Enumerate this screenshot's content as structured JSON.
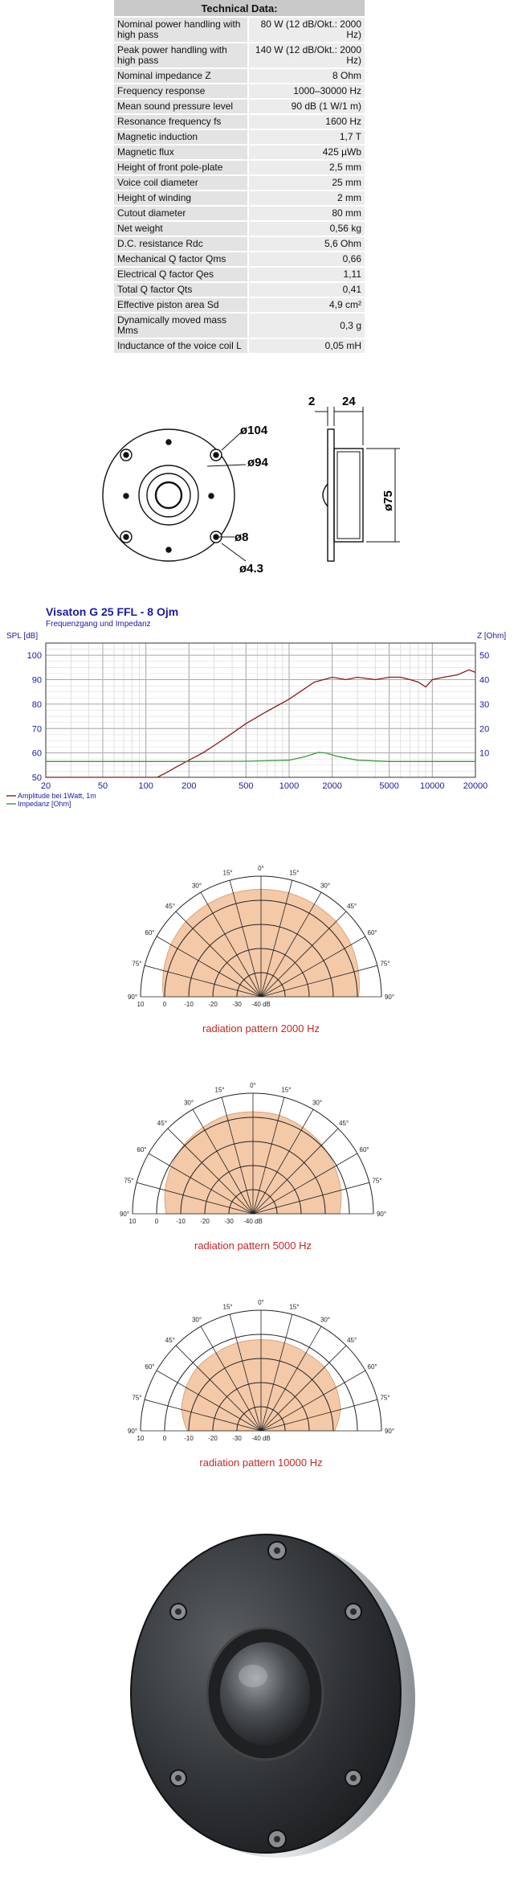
{
  "spec_table": {
    "title": "Technical Data:",
    "rows": [
      [
        "Nominal power handling with high pass",
        "80 W (12 dB/Okt.: 2000 Hz)"
      ],
      [
        "Peak power handling with high pass",
        "140 W (12 dB/Okt.: 2000 Hz)"
      ],
      [
        "Nominal impedance Z",
        "8 Ohm"
      ],
      [
        "Frequency response",
        "1000–30000 Hz"
      ],
      [
        "Mean sound pressure level",
        "90 dB (1 W/1 m)"
      ],
      [
        "Resonance frequency fs",
        "1600 Hz"
      ],
      [
        "Magnetic induction",
        "1,7 T"
      ],
      [
        "Magnetic flux",
        "425 µWb"
      ],
      [
        "Height of front pole-plate",
        "2,5 mm"
      ],
      [
        "Voice coil diameter",
        "25 mm"
      ],
      [
        "Height of winding",
        "2 mm"
      ],
      [
        "Cutout diameter",
        "80 mm"
      ],
      [
        "Net weight",
        "0,56 kg"
      ],
      [
        "D.C. resistance Rdc",
        "5,6 Ohm"
      ],
      [
        "Mechanical Q factor Qms",
        "0,66"
      ],
      [
        "Electrical Q factor Qes",
        "1,11"
      ],
      [
        "Total Q factor Qts",
        "0,41"
      ],
      [
        "Effective piston area Sd",
        "4,9 cm²"
      ],
      [
        "Dynamically moved mass Mms",
        "0,3 g"
      ],
      [
        "Inductance of the voice coil L",
        "0,05 mH"
      ]
    ]
  },
  "drawing": {
    "d104": "ø104",
    "d94": "ø94",
    "d8": "ø8",
    "d43": "ø4.3",
    "dim2": "2",
    "dim24": "24",
    "d75": "ø75"
  },
  "chart_data": {
    "type": "line",
    "title": "Visaton G 25 FFL - 8 Ojm",
    "subtitle": "Frequenzgang und Impedanz",
    "ylabel": "SPL [dB]",
    "y2label": "Z [Ohm]",
    "xscale": "log",
    "xlim": [
      20,
      20000
    ],
    "ylim": [
      50,
      105
    ],
    "y2lim": [
      0,
      55
    ],
    "xticks": [
      "20",
      "50",
      "100",
      "200",
      "500",
      "1000",
      "2000",
      "5000",
      "10000",
      "20000"
    ],
    "yticks": [
      "50",
      "60",
      "70",
      "80",
      "90",
      "100"
    ],
    "y2ticks": [
      "10",
      "20",
      "30",
      "40",
      "50"
    ],
    "grid": true,
    "series": [
      {
        "name": "Amplitude bei 1Watt, 1m",
        "color": "#8b1a1a",
        "axis": "left",
        "x": [
          20,
          100,
          120,
          140,
          160,
          200,
          250,
          300,
          400,
          500,
          700,
          1000,
          1500,
          2000,
          2500,
          3000,
          4000,
          5000,
          6000,
          7000,
          8000,
          9000,
          10000,
          12000,
          15000,
          18000,
          20000
        ],
        "y": [
          50,
          50,
          50,
          52,
          54,
          57,
          60,
          63,
          68,
          72,
          77,
          82,
          89,
          91,
          90,
          91,
          90,
          91,
          91,
          90,
          89,
          87,
          90,
          91,
          92,
          94,
          93
        ]
      },
      {
        "name": "Impedanz [Ohm]",
        "color": "#3a9a3a",
        "axis": "right",
        "x": [
          20,
          100,
          200,
          500,
          1000,
          1300,
          1600,
          1800,
          2200,
          3000,
          5000,
          10000,
          20000
        ],
        "y": [
          6.5,
          6.5,
          6.5,
          6.6,
          7,
          8.5,
          10.2,
          10,
          8.5,
          7,
          6.5,
          6.5,
          6.5
        ]
      }
    ]
  },
  "polar_common": {
    "angle_labels": [
      "0°",
      "15°",
      "15°",
      "30°",
      "30°",
      "45°",
      "45°",
      "60°",
      "60°",
      "75°",
      "75°",
      "90°",
      "90°"
    ],
    "db_labels": [
      "10",
      "0",
      "-10",
      "-20",
      "-30",
      "-40 dB"
    ]
  },
  "polar_plots": [
    {
      "caption": "radiation pattern 2000 Hz",
      "level": [
        0.99,
        0.99,
        0.985,
        0.98,
        0.96,
        0.93,
        0.9
      ]
    },
    {
      "caption": "radiation pattern 5000 Hz",
      "level": [
        0.94,
        0.94,
        0.92,
        0.9,
        0.87,
        0.84,
        0.8
      ]
    },
    {
      "caption": "radiation pattern 10000 Hz",
      "level": [
        0.84,
        0.84,
        0.83,
        0.83,
        0.8,
        0.76,
        0.68
      ]
    }
  ]
}
